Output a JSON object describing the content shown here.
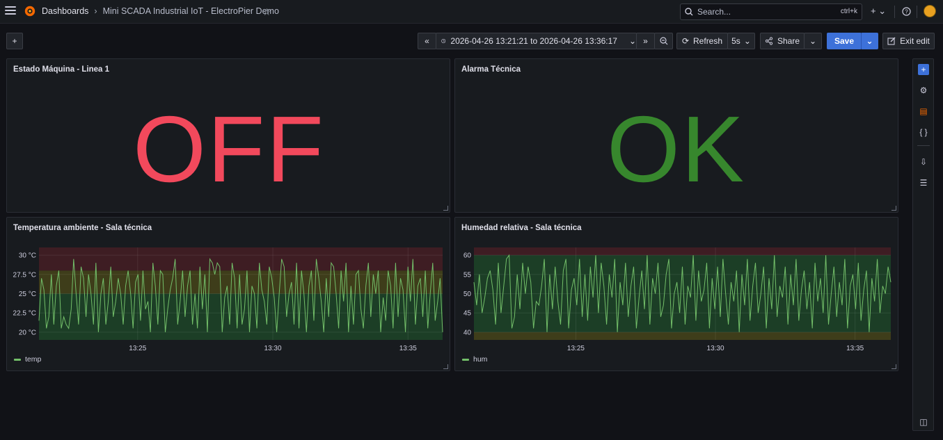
{
  "breadcrumb": {
    "root": "Dashboards",
    "current": "Mini SCADA Industrial IoT - ElectroPier Demo"
  },
  "search": {
    "placeholder": "Search...",
    "shortcut": "ctrl+k"
  },
  "toolbar": {
    "time_range": "2026-04-26 13:21:21 to 2026-04-26 13:36:17",
    "refresh_label": "Refresh",
    "refresh_interval": "5s",
    "share_label": "Share",
    "save_label": "Save",
    "exit_edit_label": "Exit edit"
  },
  "panels": {
    "machine": {
      "title": "Estado Máquina - Linea 1",
      "value": "OFF",
      "color": "#f2495c"
    },
    "alarm": {
      "title": "Alarma Técnica",
      "value": "OK",
      "color": "#37872d"
    },
    "temp": {
      "title": "Temperatura ambiente - Sala técnica",
      "legend": "temp"
    },
    "hum": {
      "title": "Humedad relativa - Sala técnica",
      "legend": "hum"
    }
  },
  "chart_data": [
    {
      "type": "line",
      "title": "Temperatura ambiente - Sala técnica",
      "ylim": [
        19,
        31
      ],
      "yticks": [
        "20 °C",
        "22.5 °C",
        "25 °C",
        "27.5 °C",
        "30 °C"
      ],
      "ytick_values": [
        20,
        22.5,
        25,
        27.5,
        30
      ],
      "xticks": [
        "13:25",
        "13:30",
        "13:35"
      ],
      "xtick_minutes": [
        3.65,
        8.65,
        13.65
      ],
      "xlim_minutes": [
        0,
        14.93
      ],
      "thresholds": [
        {
          "from": 19,
          "to": 25,
          "color": "#1e4b2a"
        },
        {
          "from": 25,
          "to": 28,
          "color": "#4b4a1a"
        },
        {
          "from": 28,
          "to": 31,
          "color": "#4b1f26"
        }
      ],
      "series": [
        {
          "name": "temp",
          "color": "#73bf69",
          "values": [
            21.5,
            27,
            25.5,
            20.5,
            22,
            27.5,
            21,
            26,
            28,
            20.5,
            22,
            21,
            20.5,
            23,
            29.5,
            25,
            21,
            28.5,
            27,
            22,
            27.5,
            25,
            21,
            29,
            20,
            25,
            27,
            21,
            24,
            28.5,
            22,
            24,
            27,
            25,
            21,
            26,
            28,
            25,
            20.5,
            26.5,
            27.5,
            21.5,
            28,
            23,
            24,
            20,
            29,
            26,
            21,
            28,
            27.5,
            20,
            23,
            25.5,
            27,
            29.5,
            21,
            24,
            28,
            22,
            26,
            28,
            21,
            25,
            20.5,
            28.5,
            23,
            27.5,
            20,
            29.5,
            29,
            27.5,
            29,
            28.5,
            20,
            24.5,
            26,
            21,
            29,
            27,
            20.5,
            27.5,
            21,
            23,
            28,
            20,
            26,
            25,
            20.5,
            29,
            25.5,
            24,
            21,
            28.5,
            27,
            24.5,
            20,
            25,
            29.5,
            28.5,
            22,
            25,
            26.5,
            21,
            29,
            20.5,
            28,
            25,
            20,
            26,
            28,
            21.5,
            29.5,
            27,
            24,
            20,
            27,
            22,
            29,
            28.5,
            25,
            20.5,
            28,
            24,
            29,
            20,
            26,
            21,
            27.5,
            28,
            23,
            20.5,
            26,
            29,
            22,
            27.5,
            25,
            28,
            20,
            24.5,
            21.5,
            28,
            26,
            20.5,
            29,
            22,
            27,
            25.5,
            20,
            28.5,
            24,
            29.5,
            21,
            26,
            27,
            22,
            28,
            20.5,
            25,
            29,
            21.5,
            24,
            27,
            20
          ]
        }
      ]
    },
    {
      "type": "line",
      "title": "Humedad relativa - Sala técnica",
      "ylim": [
        38,
        62
      ],
      "yticks": [
        "40",
        "45",
        "50",
        "55",
        "60"
      ],
      "ytick_values": [
        40,
        45,
        50,
        55,
        60
      ],
      "xticks": [
        "13:25",
        "13:30",
        "13:35"
      ],
      "xtick_minutes": [
        3.65,
        8.65,
        13.65
      ],
      "xlim_minutes": [
        0,
        14.93
      ],
      "thresholds": [
        {
          "from": 38,
          "to": 40,
          "color": "#4b4a1a"
        },
        {
          "from": 40,
          "to": 60,
          "color": "#1e4b2a"
        },
        {
          "from": 60,
          "to": 62,
          "color": "#4b1f26"
        }
      ],
      "series": [
        {
          "name": "hum",
          "color": "#73bf69",
          "values": [
            53,
            47,
            55,
            45,
            49,
            54,
            56,
            51,
            42,
            58,
            45,
            52,
            59,
            60,
            41,
            44,
            55,
            46,
            58,
            50,
            57,
            53,
            41,
            48,
            47,
            52,
            59,
            40,
            55,
            46,
            57,
            48,
            42,
            56,
            59,
            41,
            51,
            54,
            47,
            59,
            44,
            55,
            43,
            57,
            49,
            60,
            45,
            58,
            52,
            42,
            55,
            49,
            59,
            40,
            53,
            47,
            58,
            44,
            52,
            57,
            41,
            49,
            56,
            46,
            60,
            42,
            54,
            50,
            58,
            44,
            47,
            55,
            59,
            41,
            50,
            53,
            45,
            57,
            42,
            52,
            49,
            60,
            43,
            56,
            48,
            51,
            58,
            41,
            54,
            46,
            57,
            44,
            59,
            50,
            42,
            53,
            48,
            56,
            40,
            55,
            47,
            59,
            43,
            52,
            58,
            45,
            50,
            57,
            41,
            54,
            46,
            60,
            44,
            52,
            49,
            57,
            42,
            55,
            47,
            59,
            43,
            51,
            56,
            46,
            53,
            41,
            58,
            48,
            54,
            45,
            60,
            42,
            50,
            57,
            44,
            53,
            47,
            59,
            41,
            52,
            55,
            46,
            58,
            43,
            51,
            56,
            40,
            54,
            48,
            59,
            45,
            52,
            50,
            57,
            53
          ]
        }
      ]
    }
  ]
}
